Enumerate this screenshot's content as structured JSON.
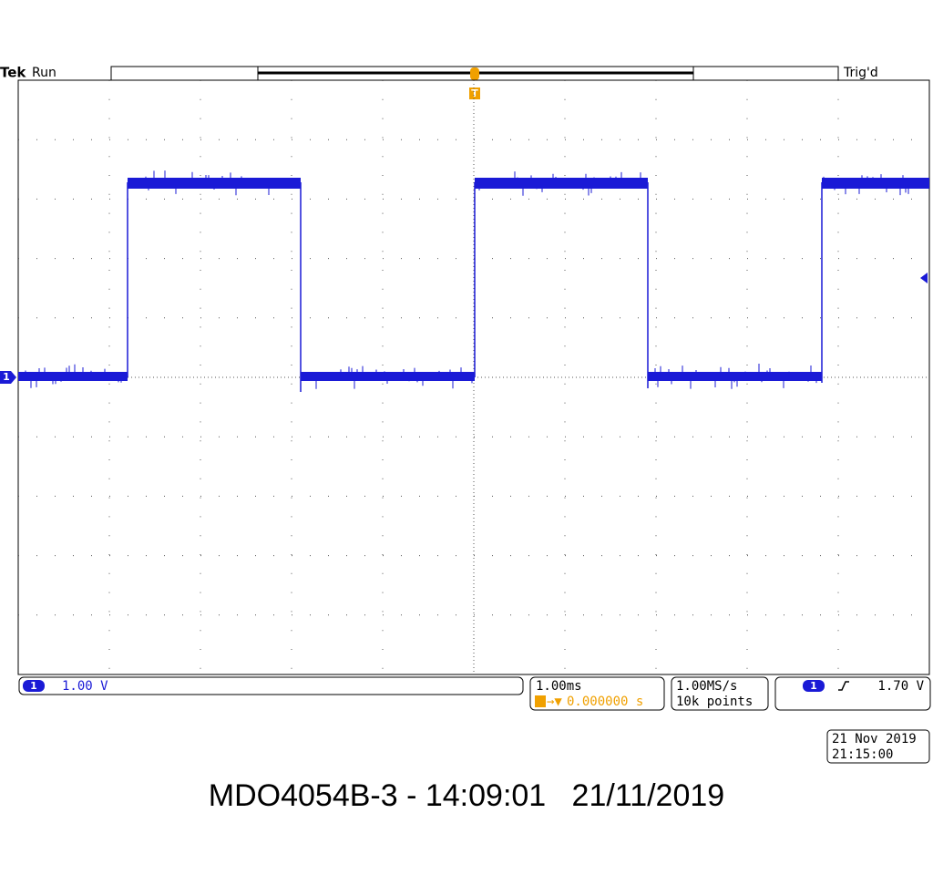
{
  "header": {
    "brand": "Tek",
    "state": "Run",
    "trigger_status": "Trig'd"
  },
  "trigger_marker": "T",
  "channel_marker": "1",
  "status_bar": {
    "channel": {
      "number": "1",
      "scale": "1.00 V"
    },
    "timebase": {
      "scale": "1.00ms",
      "trigger_position": "0.000000 s"
    },
    "acquisition": {
      "sample_rate": "1.00MS/s",
      "record_length": "10k points"
    },
    "trigger": {
      "channel": "1",
      "level": "1.70 V"
    }
  },
  "timestamp": {
    "date": "21 Nov 2019",
    "time": "21:15:00"
  },
  "caption": "MDO4054B-3 - 14:09:01   21/11/2019"
}
